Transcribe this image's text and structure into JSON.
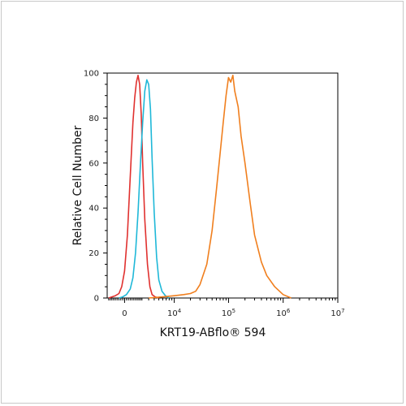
{
  "chart_data": {
    "type": "line",
    "title": "",
    "xlabel": "KRT19-ABflo® 594",
    "ylabel": "Relative Cell Number",
    "y_scale": "linear",
    "x_scale": "biexponential",
    "ylim": [
      0,
      100
    ],
    "y_ticks": [
      "0",
      "20",
      "40",
      "60",
      "80",
      "100"
    ],
    "x_tick_labels": [
      {
        "value": 0,
        "label": "0"
      },
      {
        "value": 10000,
        "base": "10",
        "exp": "4"
      },
      {
        "value": 100000,
        "base": "10",
        "exp": "5"
      },
      {
        "value": 1000000,
        "base": "10",
        "exp": "6"
      },
      {
        "value": 10000000,
        "base": "10",
        "exp": "7"
      }
    ],
    "grid": false,
    "legend": "none",
    "series": [
      {
        "color": "#e0312f",
        "x": [
          -1800,
          -1400,
          -1000,
          -600,
          -300,
          0,
          300,
          500,
          700,
          900,
          1100,
          1300,
          1500,
          1700,
          1900,
          2100,
          2400,
          2800,
          3200,
          3600,
          4200,
          5000
        ],
        "y": [
          0,
          0.5,
          1,
          2,
          5,
          12,
          28,
          45,
          62,
          78,
          89,
          96,
          99,
          95,
          82,
          60,
          35,
          15,
          5,
          1.5,
          0.5,
          0
        ]
      },
      {
        "color": "#1fb8d8",
        "x": [
          -600,
          -200,
          200,
          600,
          900,
          1200,
          1500,
          1800,
          2100,
          2400,
          2700,
          3000,
          3300,
          3600,
          4000,
          4500,
          5000,
          5800,
          6800,
          8000
        ],
        "y": [
          0,
          0.5,
          1.5,
          4,
          9,
          20,
          38,
          60,
          78,
          92,
          97,
          95,
          84,
          62,
          38,
          18,
          8,
          3,
          1,
          0
        ]
      },
      {
        "color": "#f07f1e",
        "x": [
          3000,
          6000,
          10000,
          15000,
          20000,
          25000,
          30000,
          40000,
          50000,
          60000,
          70000,
          80000,
          90000,
          100000,
          110000,
          120000,
          130000,
          150000,
          170000,
          200000,
          250000,
          300000,
          400000,
          500000,
          700000,
          1000000,
          1400000
        ],
        "y": [
          0,
          0.5,
          1,
          1.5,
          2,
          3,
          6,
          15,
          30,
          48,
          64,
          78,
          90,
          98,
          96,
          99,
          92,
          85,
          72,
          60,
          42,
          28,
          16,
          10,
          5,
          1.5,
          0
        ]
      }
    ]
  }
}
